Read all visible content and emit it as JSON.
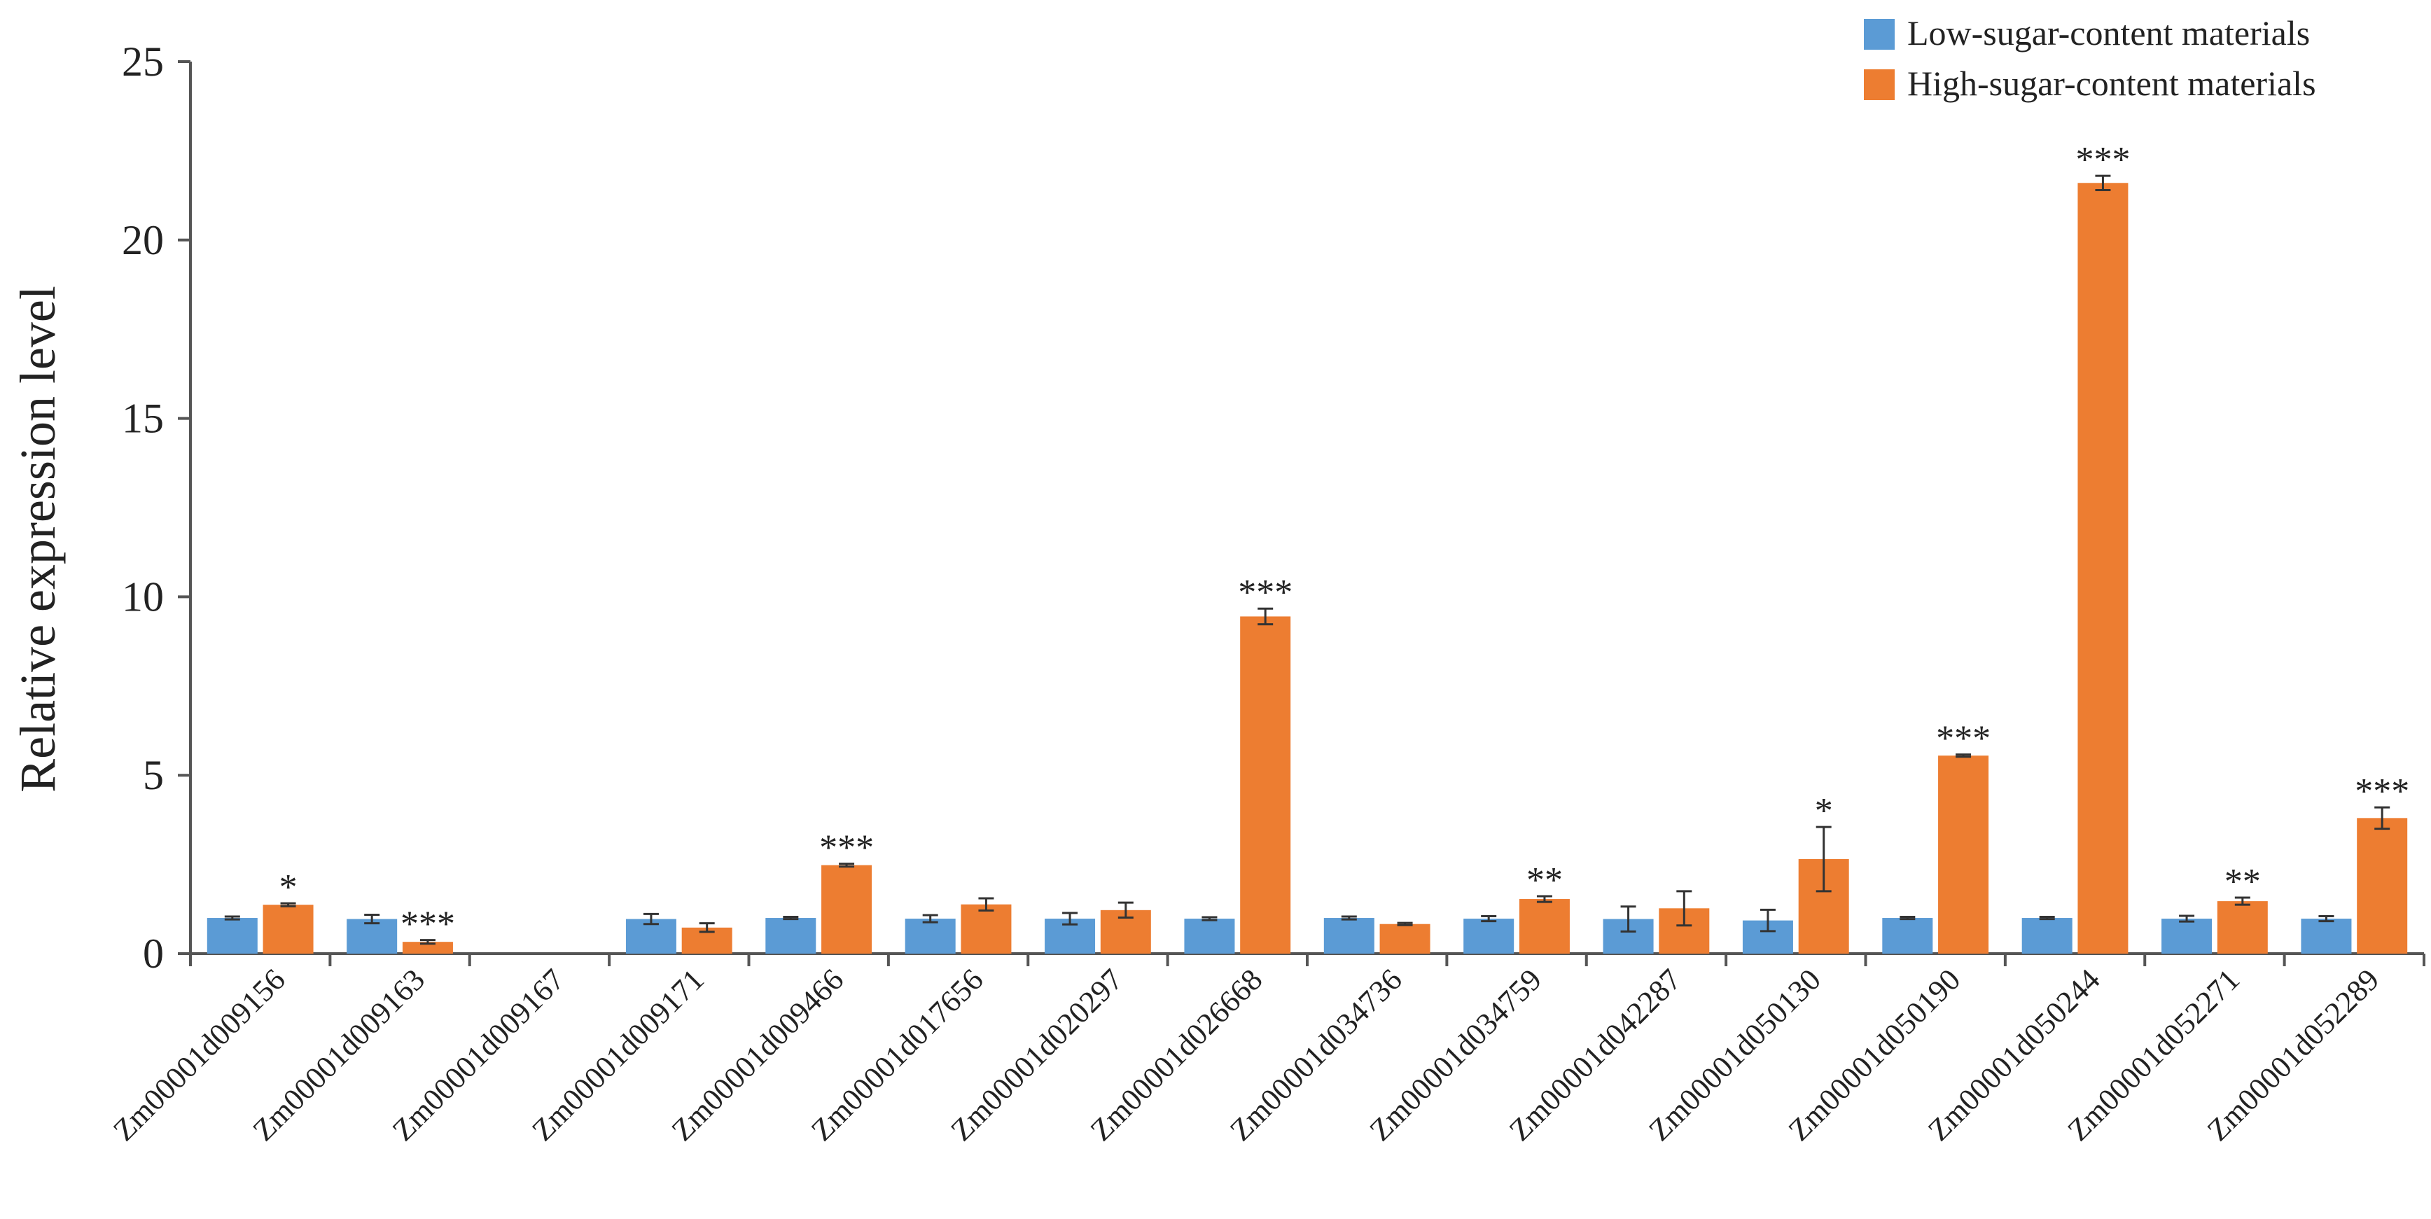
{
  "chart_data": {
    "type": "bar",
    "ylabel": "Relative expression level",
    "ylim": [
      0,
      25
    ],
    "yticks": [
      0,
      5,
      10,
      15,
      20,
      25
    ],
    "grid": false,
    "legend_position": "top-right",
    "categories": [
      "Zm00001d009156",
      "Zm00001d009163",
      "Zm00001d009167",
      "Zm00001d009171",
      "Zm00001d009466",
      "Zm00001d017656",
      "Zm00001d020297",
      "Zm00001d026668",
      "Zm00001d034736",
      "Zm00001d034759",
      "Zm00001d042287",
      "Zm00001d050130",
      "Zm00001d050190",
      "Zm00001d050244",
      "Zm00001d052271",
      "Zm00001d052289"
    ],
    "series": [
      {
        "name": "Low-sugar-content materials",
        "color": "#5b9bd5",
        "values": [
          1,
          0.97,
          null,
          0.97,
          1,
          0.98,
          0.98,
          0.98,
          1,
          0.98,
          0.97,
          0.93,
          1,
          1,
          0.98,
          0.98
        ],
        "errors": [
          0.04,
          0.12,
          null,
          0.14,
          0.03,
          0.1,
          0.16,
          0.04,
          0.04,
          0.07,
          0.35,
          0.3,
          0.03,
          0.03,
          0.08,
          0.07
        ]
      },
      {
        "name": "High-sugar-content materials",
        "color": "#ed7d31",
        "values": [
          1.37,
          0.33,
          null,
          0.73,
          2.48,
          1.38,
          1.22,
          9.45,
          0.83,
          1.53,
          1.27,
          2.65,
          5.55,
          21.6,
          1.47,
          3.8
        ],
        "errors": [
          0.04,
          0.05,
          null,
          0.12,
          0.04,
          0.17,
          0.21,
          0.22,
          0.03,
          0.08,
          0.48,
          0.9,
          0.03,
          0.2,
          0.1,
          0.3
        ],
        "significance": [
          "*",
          "***",
          "",
          "",
          "***",
          "",
          "",
          "***",
          "",
          "**",
          "",
          "*",
          "***",
          "***",
          "**",
          "***"
        ]
      }
    ]
  }
}
